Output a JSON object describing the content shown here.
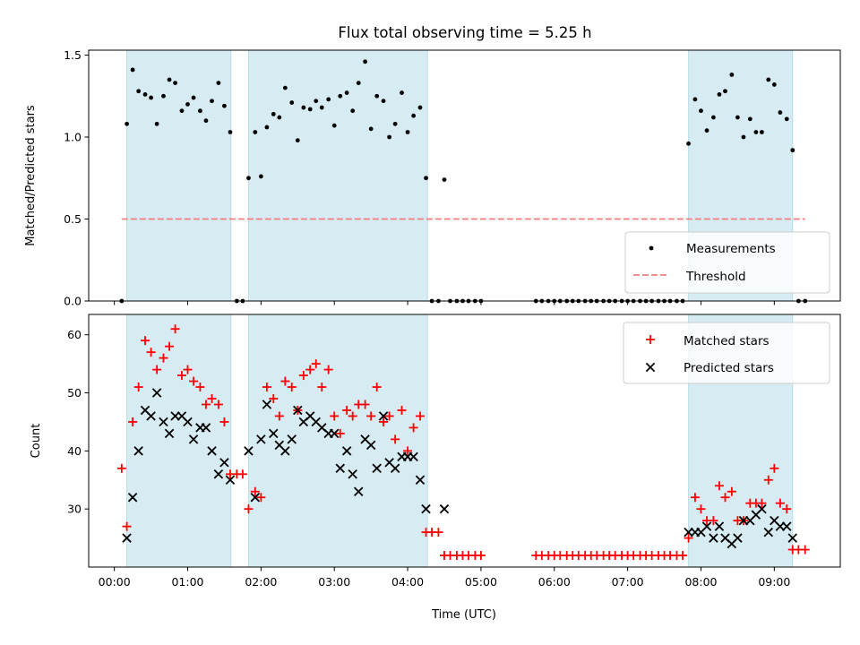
{
  "chart_data": {
    "title": "Flux total observing time = 5.25 h",
    "xlabel": "Time (UTC)",
    "x_ticks": [
      "00:00",
      "01:00",
      "02:00",
      "03:00",
      "04:00",
      "05:00",
      "06:00",
      "07:00",
      "08:00",
      "09:00"
    ],
    "xlim_hours": [
      -0.35,
      9.9
    ],
    "shaded_intervals_hours": [
      [
        0.17,
        1.59
      ],
      [
        1.83,
        4.27
      ],
      [
        7.83,
        9.25
      ]
    ],
    "shade_color": "#add8e6",
    "panels": [
      {
        "type": "scatter",
        "ylabel": "Matched/Predicted stars",
        "ylim": [
          0,
          1.53
        ],
        "y_ticks": [
          0.0,
          0.5,
          1.0,
          1.5
        ],
        "legend_position": "lower-right",
        "series": [
          {
            "name": "Measurements",
            "color": "#000000",
            "marker": "dot",
            "x": [
              0.1,
              0.17,
              0.25,
              0.33,
              0.42,
              0.5,
              0.58,
              0.67,
              0.75,
              0.83,
              0.92,
              1.0,
              1.08,
              1.17,
              1.25,
              1.33,
              1.42,
              1.5,
              1.58,
              1.67,
              1.75,
              1.83,
              1.92,
              2.0,
              2.08,
              2.17,
              2.25,
              2.33,
              2.42,
              2.5,
              2.58,
              2.67,
              2.75,
              2.83,
              2.92,
              3.0,
              3.08,
              3.17,
              3.25,
              3.33,
              3.42,
              3.5,
              3.58,
              3.67,
              3.75,
              3.83,
              3.92,
              4.0,
              4.08,
              4.17,
              4.25,
              4.33,
              4.42,
              4.5,
              4.58,
              4.67,
              4.75,
              4.83,
              4.92,
              5.0,
              5.75,
              5.83,
              5.92,
              6.0,
              6.08,
              6.17,
              6.25,
              6.33,
              6.42,
              6.5,
              6.58,
              6.67,
              6.75,
              6.83,
              6.92,
              7.0,
              7.08,
              7.17,
              7.25,
              7.33,
              7.42,
              7.5,
              7.58,
              7.67,
              7.75,
              7.83,
              7.92,
              8.0,
              8.08,
              8.17,
              8.25,
              8.33,
              8.42,
              8.5,
              8.58,
              8.67,
              8.75,
              8.83,
              8.92,
              9.0,
              9.08,
              9.17,
              9.25,
              9.33,
              9.42
            ],
            "y": [
              0.0,
              1.08,
              1.41,
              1.28,
              1.26,
              1.24,
              1.08,
              1.25,
              1.35,
              1.33,
              1.16,
              1.2,
              1.24,
              1.16,
              1.1,
              1.22,
              1.33,
              1.19,
              1.03,
              0.0,
              0.0,
              0.75,
              1.03,
              0.76,
              1.06,
              1.14,
              1.12,
              1.3,
              1.21,
              0.98,
              1.18,
              1.17,
              1.22,
              1.18,
              1.23,
              1.07,
              1.25,
              1.27,
              1.16,
              1.33,
              1.46,
              1.05,
              1.25,
              1.22,
              1.0,
              1.08,
              1.27,
              1.03,
              1.13,
              1.18,
              0.75,
              0.0,
              0.0,
              0.74,
              0.0,
              0.0,
              0.0,
              0.0,
              0.0,
              0.0,
              0.0,
              0.0,
              0.0,
              0.0,
              0.0,
              0.0,
              0.0,
              0.0,
              0.0,
              0.0,
              0.0,
              0.0,
              0.0,
              0.0,
              0.0,
              0.0,
              0.0,
              0.0,
              0.0,
              0.0,
              0.0,
              0.0,
              0.0,
              0.0,
              0.0,
              0.96,
              1.23,
              1.16,
              1.04,
              1.12,
              1.26,
              1.28,
              1.38,
              1.12,
              1.0,
              1.11,
              1.03,
              1.03,
              1.35,
              1.32,
              1.15,
              1.11,
              0.92,
              0.0,
              0.0
            ]
          },
          {
            "name": "Threshold",
            "color": "#f08080",
            "line": "dashed",
            "x": [
              0.1,
              9.42
            ],
            "y": [
              0.5,
              0.5
            ]
          }
        ]
      },
      {
        "type": "scatter",
        "ylabel": "Count",
        "ylim": [
          20,
          63.5
        ],
        "y_ticks": [
          30,
          40,
          50,
          60
        ],
        "legend_position": "upper-right",
        "series": [
          {
            "name": "Matched stars",
            "color": "#ff0000",
            "marker": "plus",
            "x": [
              0.1,
              0.17,
              0.25,
              0.33,
              0.42,
              0.5,
              0.58,
              0.67,
              0.75,
              0.83,
              0.92,
              1.0,
              1.08,
              1.17,
              1.25,
              1.33,
              1.42,
              1.5,
              1.58,
              1.67,
              1.75,
              1.83,
              1.92,
              2.0,
              2.08,
              2.17,
              2.25,
              2.33,
              2.42,
              2.5,
              2.58,
              2.67,
              2.75,
              2.83,
              2.92,
              3.0,
              3.08,
              3.17,
              3.25,
              3.33,
              3.42,
              3.5,
              3.58,
              3.67,
              3.75,
              3.83,
              3.92,
              4.0,
              4.08,
              4.17,
              4.25,
              4.33,
              4.42,
              4.5,
              4.58,
              4.67,
              4.75,
              4.83,
              4.92,
              5.0,
              5.75,
              5.83,
              5.92,
              6.0,
              6.08,
              6.17,
              6.25,
              6.33,
              6.42,
              6.5,
              6.58,
              6.67,
              6.75,
              6.83,
              6.92,
              7.0,
              7.08,
              7.17,
              7.25,
              7.33,
              7.42,
              7.5,
              7.58,
              7.67,
              7.75,
              7.83,
              7.92,
              8.0,
              8.08,
              8.17,
              8.25,
              8.33,
              8.42,
              8.5,
              8.58,
              8.67,
              8.75,
              8.83,
              8.92,
              9.0,
              9.08,
              9.17,
              9.25,
              9.33,
              9.42
            ],
            "y": [
              37,
              27,
              45,
              51,
              59,
              57,
              54,
              56,
              58,
              61,
              53,
              54,
              52,
              51,
              48,
              49,
              48,
              45,
              36,
              36,
              36,
              30,
              33,
              32,
              51,
              49,
              46,
              52,
              51,
              47,
              53,
              54,
              55,
              51,
              54,
              46,
              43,
              47,
              46,
              48,
              48,
              46,
              51,
              45,
              46,
              42,
              47,
              40,
              44,
              46,
              26,
              26,
              26,
              22,
              22,
              22,
              22,
              22,
              22,
              22,
              22,
              22,
              22,
              22,
              22,
              22,
              22,
              22,
              22,
              22,
              22,
              22,
              22,
              22,
              22,
              22,
              22,
              22,
              22,
              22,
              22,
              22,
              22,
              22,
              22,
              25,
              32,
              30,
              28,
              28,
              34,
              32,
              33,
              28,
              28,
              31,
              31,
              31,
              35,
              37,
              31,
              30,
              23,
              23,
              23
            ]
          },
          {
            "name": "Predicted stars",
            "color": "#000000",
            "marker": "x",
            "x": [
              0.17,
              0.25,
              0.33,
              0.42,
              0.5,
              0.58,
              0.67,
              0.75,
              0.83,
              0.92,
              1.0,
              1.08,
              1.17,
              1.25,
              1.33,
              1.42,
              1.5,
              1.58,
              1.83,
              1.92,
              2.0,
              2.08,
              2.17,
              2.25,
              2.33,
              2.42,
              2.5,
              2.58,
              2.67,
              2.75,
              2.83,
              2.92,
              3.0,
              3.08,
              3.17,
              3.25,
              3.33,
              3.42,
              3.5,
              3.58,
              3.67,
              3.75,
              3.83,
              3.92,
              4.0,
              4.08,
              4.17,
              4.25,
              4.5,
              7.83,
              7.92,
              8.0,
              8.08,
              8.17,
              8.25,
              8.33,
              8.42,
              8.5,
              8.58,
              8.67,
              8.75,
              8.83,
              8.92,
              9.0,
              9.08,
              9.17,
              9.25
            ],
            "y": [
              25,
              32,
              40,
              47,
              46,
              50,
              45,
              43,
              46,
              46,
              45,
              42,
              44,
              44,
              40,
              36,
              38,
              35,
              40,
              32,
              42,
              48,
              43,
              41,
              40,
              42,
              47,
              45,
              46,
              45,
              44,
              43,
              43,
              37,
              40,
              36,
              33,
              42,
              41,
              37,
              46,
              38,
              37,
              39,
              39,
              39,
              35,
              30,
              30,
              26,
              26,
              26,
              27,
              25,
              27,
              25,
              24,
              25,
              28,
              28,
              29,
              30,
              26,
              28,
              27,
              27,
              25
            ]
          }
        ]
      }
    ]
  }
}
